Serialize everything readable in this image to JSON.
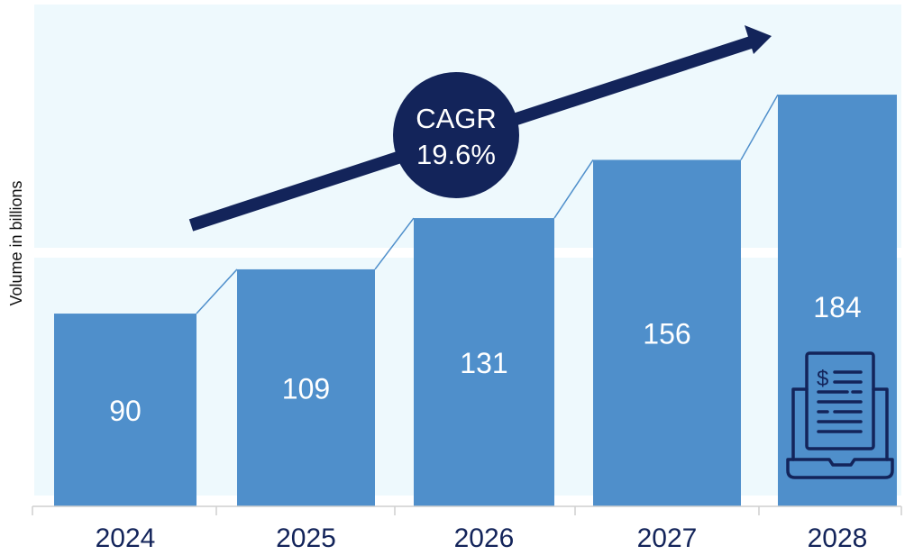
{
  "chart_data": {
    "type": "bar",
    "title": "",
    "xlabel": "",
    "ylabel": "Volume in billions",
    "categories": [
      "2024",
      "2025",
      "2026",
      "2027",
      "2028"
    ],
    "values": [
      90,
      109,
      131,
      156,
      184
    ],
    "data_labels": [
      "90",
      "109",
      "131",
      "156",
      "184"
    ],
    "annotation": {
      "line1": "CAGR",
      "line2": "19.6%"
    },
    "grid": false,
    "legend": "none",
    "colors": {
      "bar": "#4f8fcb",
      "panel": "#eef9fd",
      "dark": "#13245a",
      "connector": "#4f8fcb"
    },
    "icons": [
      "laptop-invoice-icon",
      "growth-arrow-icon"
    ]
  }
}
